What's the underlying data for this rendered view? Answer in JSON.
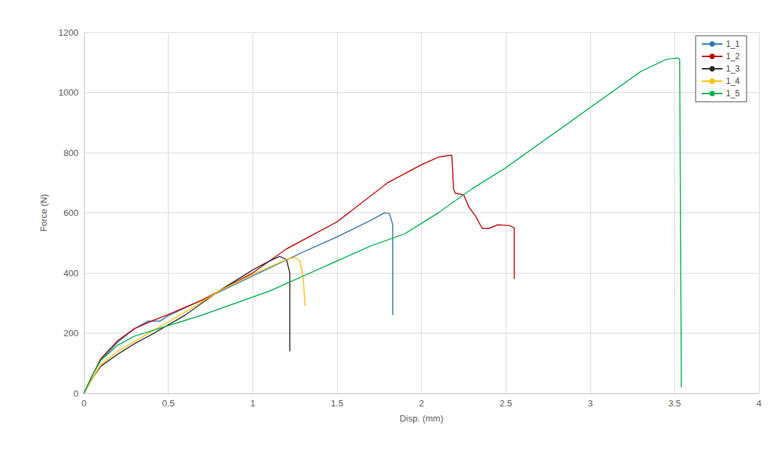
{
  "chart_data": {
    "type": "line",
    "x_label": "Disp. (mm)",
    "y_label": "Force (N)",
    "xlim": [
      0,
      4
    ],
    "xticks": [
      0,
      0.5,
      1,
      1.5,
      2,
      2.5,
      3,
      3.5,
      4
    ],
    "ylim": [
      0,
      1200
    ],
    "yticks": [
      0,
      200,
      400,
      600,
      800,
      1000,
      1200
    ],
    "grid": true,
    "legend": "upper right",
    "series": [
      {
        "name": "1_1",
        "color": "#2E75B6",
        "x": [
          0,
          0.05,
          0.1,
          0.2,
          0.3,
          0.38,
          0.45,
          0.5,
          0.7,
          1.0,
          1.3,
          1.5,
          1.7,
          1.78,
          1.81,
          1.83,
          1.83
        ],
        "values": [
          0,
          60,
          110,
          170,
          215,
          240,
          240,
          258,
          310,
          390,
          470,
          520,
          575,
          600,
          598,
          560,
          260
        ]
      },
      {
        "name": "1_2",
        "color": "#C00000",
        "x": [
          0,
          0.05,
          0.1,
          0.2,
          0.3,
          0.4,
          0.5,
          0.7,
          0.9,
          1.0,
          1.2,
          1.5,
          1.8,
          2.0,
          2.1,
          2.18,
          2.19,
          2.2,
          2.25,
          2.28,
          2.32,
          2.36,
          2.4,
          2.45,
          2.52,
          2.55,
          2.55
        ],
        "values": [
          0,
          60,
          115,
          175,
          215,
          240,
          262,
          310,
          370,
          400,
          480,
          570,
          700,
          760,
          785,
          792,
          680,
          665,
          660,
          620,
          590,
          548,
          548,
          560,
          558,
          550,
          380
        ]
      },
      {
        "name": "1_3",
        "color": "#262626",
        "x": [
          0,
          0.05,
          0.1,
          0.2,
          0.3,
          0.4,
          0.6,
          0.8,
          1.0,
          1.1,
          1.16,
          1.2,
          1.22,
          1.22
        ],
        "values": [
          0,
          50,
          90,
          130,
          165,
          195,
          260,
          340,
          410,
          440,
          455,
          445,
          400,
          140
        ]
      },
      {
        "name": "1_4",
        "color": "#FFC000",
        "x": [
          0,
          0.05,
          0.1,
          0.2,
          0.4,
          0.6,
          0.8,
          1.0,
          1.2,
          1.25,
          1.28,
          1.3,
          1.31
        ],
        "values": [
          0,
          50,
          95,
          140,
          205,
          270,
          340,
          395,
          445,
          452,
          440,
          380,
          290
        ]
      },
      {
        "name": "1_5",
        "color": "#00B050",
        "x": [
          0,
          0.05,
          0.1,
          0.2,
          0.3,
          0.5,
          0.7,
          0.9,
          1.1,
          1.3,
          1.5,
          1.7,
          1.9,
          2.1,
          2.3,
          2.5,
          2.7,
          2.9,
          3.1,
          3.3,
          3.45,
          3.52,
          3.53,
          3.54
        ],
        "values": [
          0,
          60,
          110,
          160,
          190,
          225,
          260,
          300,
          340,
          390,
          440,
          490,
          530,
          600,
          680,
          750,
          830,
          910,
          990,
          1070,
          1110,
          1115,
          1110,
          20
        ]
      }
    ]
  }
}
